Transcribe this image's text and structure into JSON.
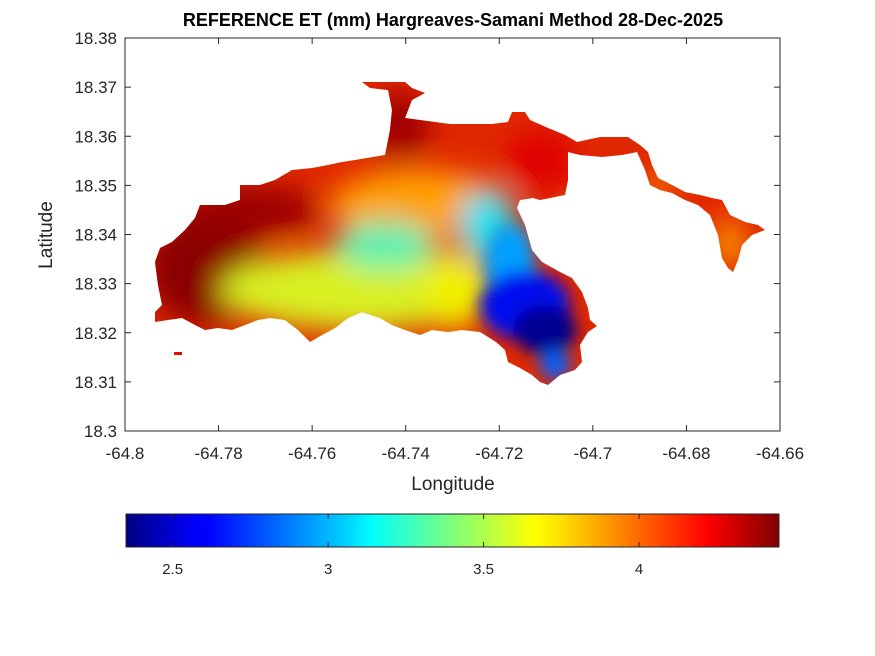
{
  "chart_data": {
    "type": "heatmap",
    "title": "REFERENCE ET (mm) Hargreaves-Samani Method  28-Dec-2025",
    "xlabel": "Longitude",
    "ylabel": "Latitude",
    "xlim": [
      -64.8,
      -64.66
    ],
    "ylim": [
      18.3,
      18.38
    ],
    "x_ticks": [
      -64.8,
      -64.78,
      -64.76,
      -64.74,
      -64.72,
      -64.7,
      -64.68,
      -64.66
    ],
    "x_tick_labels": [
      "-64.8",
      "-64.78",
      "-64.76",
      "-64.74",
      "-64.72",
      "-64.7",
      "-64.68",
      "-64.66"
    ],
    "y_ticks": [
      18.3,
      18.31,
      18.32,
      18.33,
      18.34,
      18.35,
      18.36,
      18.37,
      18.38
    ],
    "y_tick_labels": [
      "18.3",
      "18.31",
      "18.32",
      "18.33",
      "18.34",
      "18.35",
      "18.36",
      "18.37",
      "18.38"
    ],
    "grid": false,
    "colormap": "jet",
    "colorbar": {
      "orientation": "horizontal",
      "location": "below",
      "clim": [
        2.35,
        4.45
      ],
      "ticks": [
        2.5,
        3,
        3.5,
        4
      ],
      "tick_labels": [
        "2.5",
        "3",
        "3.5",
        "4"
      ]
    },
    "field_summary": {
      "value_range": [
        2.4,
        4.45
      ],
      "high_west_and_north_coast": 4.4,
      "low_southeast_center": 2.4,
      "central_interior": 3.3
    }
  }
}
